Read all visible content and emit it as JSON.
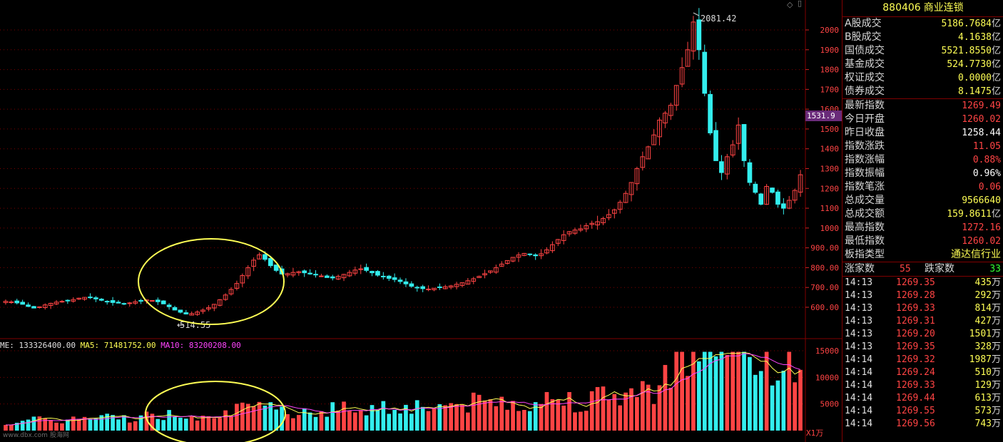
{
  "panel": {
    "code": "880406",
    "name": "商业连锁",
    "trade_stats": [
      {
        "label": "A股成交",
        "value": "5186.7684",
        "unit": "亿"
      },
      {
        "label": "B股成交",
        "value": "4.1638",
        "unit": "亿"
      },
      {
        "label": "国债成交",
        "value": "5521.8550",
        "unit": "亿"
      },
      {
        "label": "基金成交",
        "value": "524.7730",
        "unit": "亿"
      },
      {
        "label": "权证成交",
        "value": "0.0000",
        "unit": "亿"
      },
      {
        "label": "债券成交",
        "value": "8.1475",
        "unit": "亿"
      }
    ],
    "index_stats": [
      {
        "label": "最新指数",
        "value": "1269.49",
        "unit": "",
        "color": "red"
      },
      {
        "label": "今日开盘",
        "value": "1260.02",
        "unit": "",
        "color": "red"
      },
      {
        "label": "昨日收盘",
        "value": "1258.44",
        "unit": "",
        "color": "white"
      },
      {
        "label": "指数涨跌",
        "value": "11.05",
        "unit": "",
        "color": "red"
      },
      {
        "label": "指数涨幅",
        "value": "0.88%",
        "unit": "",
        "color": "red"
      },
      {
        "label": "指数振幅",
        "value": "0.96%",
        "unit": "",
        "color": "white"
      },
      {
        "label": "指数笔涨",
        "value": "0.06",
        "unit": "",
        "color": "red"
      },
      {
        "label": "总成交量",
        "value": "9566640",
        "unit": "",
        "color": "yellow"
      },
      {
        "label": "总成交额",
        "value": "159.8611",
        "unit": "亿",
        "color": "yellow"
      },
      {
        "label": "最高指数",
        "value": "1272.16",
        "unit": "",
        "color": "red"
      },
      {
        "label": "最低指数",
        "value": "1260.02",
        "unit": "",
        "color": "red"
      },
      {
        "label": "板指类型",
        "value": "通达信行业",
        "unit": "",
        "color": "yellow"
      }
    ],
    "up_label": "涨家数",
    "up_count": "55",
    "down_label": "跌家数",
    "down_count": "33",
    "ticks": [
      {
        "time": "14:13",
        "price": "1269.35",
        "vol": "435",
        "unit": "万"
      },
      {
        "time": "14:13",
        "price": "1269.28",
        "vol": "292",
        "unit": "万"
      },
      {
        "time": "14:13",
        "price": "1269.33",
        "vol": "814",
        "unit": "万"
      },
      {
        "time": "14:13",
        "price": "1269.31",
        "vol": "427",
        "unit": "万"
      },
      {
        "time": "14:13",
        "price": "1269.20",
        "vol": "1501",
        "unit": "万"
      },
      {
        "time": "14:13",
        "price": "1269.35",
        "vol": "328",
        "unit": "万"
      },
      {
        "time": "14:14",
        "price": "1269.32",
        "vol": "1987",
        "unit": "万"
      },
      {
        "time": "14:14",
        "price": "1269.24",
        "vol": "510",
        "unit": "万"
      },
      {
        "time": "14:14",
        "price": "1269.33",
        "vol": "129",
        "unit": "万"
      },
      {
        "time": "14:14",
        "price": "1269.44",
        "vol": "613",
        "unit": "万"
      },
      {
        "time": "14:14",
        "price": "1269.55",
        "vol": "573",
        "unit": "万"
      },
      {
        "time": "14:14",
        "price": "1269.56",
        "vol": "743",
        "unit": "万"
      }
    ]
  },
  "chart": {
    "price_axis": [
      "2000",
      "1900",
      "1800",
      "1700",
      "1600",
      "1500",
      "1400",
      "1300",
      "1200",
      "1100",
      "1000",
      "900.00",
      "800.00",
      "700.00",
      "600.00"
    ],
    "vol_axis": [
      "15000",
      "10000",
      "5000"
    ],
    "vol_unit": "X1万",
    "current_price": "1531.9",
    "high_label": "2081.42",
    "low_label": "514.55",
    "vol_info": {
      "vol": "ME: 133326400.00",
      "ma5": "MA5: 71481752.00",
      "ma10": "MA10: 83200208.00"
    },
    "watermark": "www.dbx.com 股海网"
  },
  "colors": {
    "up": "#ff4444",
    "down": "#33eeee",
    "ma5": "#ffff55",
    "ma10": "#ff44ff",
    "grid": "#800000",
    "ellipse": "#ffff55"
  }
}
